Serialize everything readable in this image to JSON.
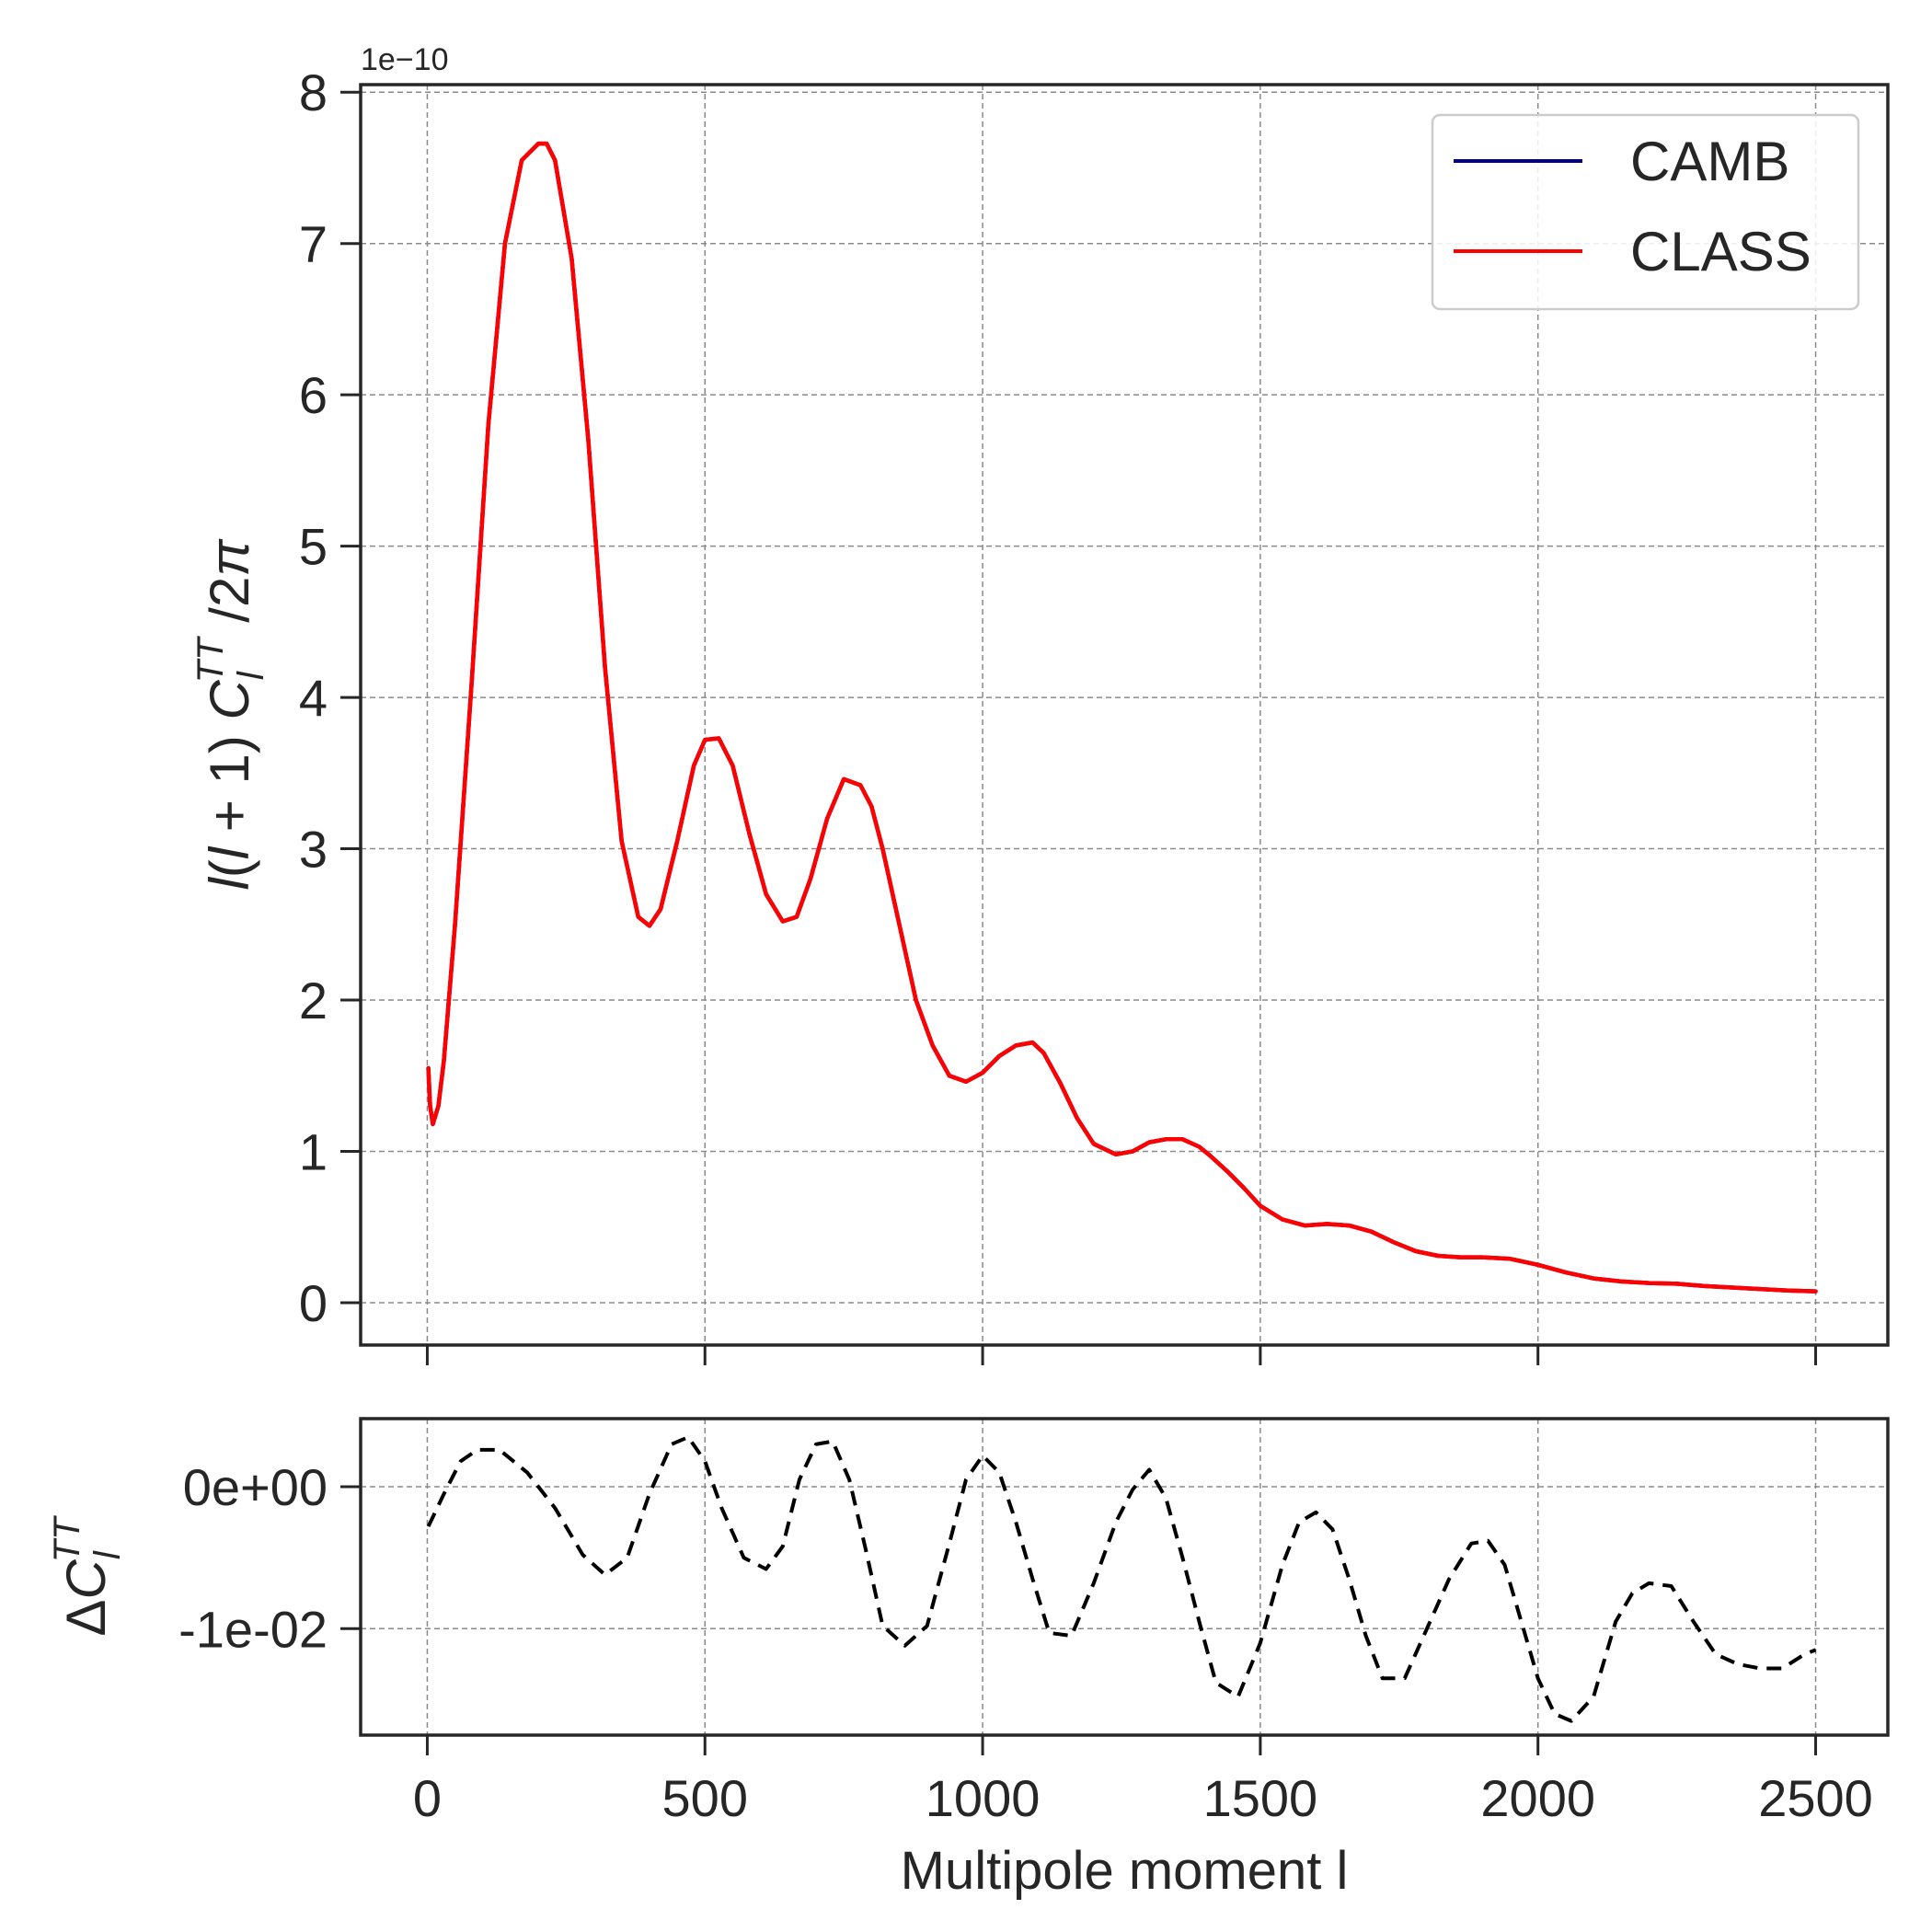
{
  "chart_data": [
    {
      "type": "line",
      "title": "",
      "ylabel": "l(l+1) C_l^TT /2π",
      "xlabel": "",
      "y_offset_text": "1e−10",
      "xlim": [
        -120,
        2630
      ],
      "ylim": [
        -0.28,
        8.05
      ],
      "xticks": [
        0,
        500,
        1000,
        1500,
        2000,
        2500
      ],
      "yticks": [
        0,
        1,
        2,
        3,
        4,
        5,
        6,
        7,
        8
      ],
      "ytick_labels": [
        "0",
        "1",
        "2",
        "3",
        "4",
        "5",
        "6",
        "7",
        "8"
      ],
      "grid": true,
      "legend_position": "top-right",
      "x": [
        2,
        5,
        10,
        20,
        30,
        50,
        80,
        110,
        140,
        170,
        200,
        215,
        230,
        260,
        290,
        320,
        350,
        380,
        400,
        420,
        450,
        480,
        500,
        525,
        550,
        580,
        610,
        640,
        665,
        690,
        720,
        750,
        780,
        800,
        820,
        850,
        880,
        910,
        940,
        970,
        1000,
        1030,
        1060,
        1090,
        1110,
        1140,
        1170,
        1200,
        1240,
        1270,
        1300,
        1330,
        1360,
        1390,
        1410,
        1440,
        1470,
        1500,
        1540,
        1580,
        1620,
        1660,
        1700,
        1740,
        1780,
        1820,
        1860,
        1900,
        1950,
        2000,
        2050,
        2100,
        2150,
        2200,
        2250,
        2300,
        2350,
        2400,
        2450,
        2500
      ],
      "series": [
        {
          "name": "CAMB",
          "color": "#00008b",
          "style": "solid",
          "values": [
            1.55,
            1.3,
            1.18,
            1.3,
            1.6,
            2.5,
            4.1,
            5.8,
            7.0,
            7.55,
            7.66,
            7.66,
            7.55,
            6.9,
            5.7,
            4.2,
            3.05,
            2.55,
            2.49,
            2.6,
            3.05,
            3.55,
            3.72,
            3.73,
            3.55,
            3.1,
            2.7,
            2.52,
            2.55,
            2.8,
            3.2,
            3.46,
            3.42,
            3.28,
            3.0,
            2.5,
            2.0,
            1.7,
            1.5,
            1.46,
            1.52,
            1.63,
            1.7,
            1.72,
            1.65,
            1.45,
            1.22,
            1.05,
            0.98,
            1.0,
            1.06,
            1.08,
            1.08,
            1.03,
            0.97,
            0.87,
            0.76,
            0.64,
            0.55,
            0.51,
            0.52,
            0.51,
            0.47,
            0.4,
            0.34,
            0.31,
            0.3,
            0.3,
            0.29,
            0.25,
            0.2,
            0.16,
            0.14,
            0.13,
            0.125,
            0.11,
            0.1,
            0.09,
            0.08,
            0.075
          ]
        },
        {
          "name": "CLASS",
          "color": "#ff0000",
          "style": "solid",
          "values": [
            1.55,
            1.3,
            1.18,
            1.3,
            1.6,
            2.5,
            4.1,
            5.8,
            7.0,
            7.55,
            7.66,
            7.66,
            7.55,
            6.9,
            5.7,
            4.2,
            3.05,
            2.55,
            2.49,
            2.6,
            3.05,
            3.55,
            3.72,
            3.73,
            3.55,
            3.1,
            2.7,
            2.52,
            2.55,
            2.8,
            3.2,
            3.46,
            3.42,
            3.28,
            3.0,
            2.5,
            2.0,
            1.7,
            1.5,
            1.46,
            1.52,
            1.63,
            1.7,
            1.72,
            1.65,
            1.45,
            1.22,
            1.05,
            0.98,
            1.0,
            1.06,
            1.08,
            1.08,
            1.03,
            0.97,
            0.87,
            0.76,
            0.64,
            0.55,
            0.51,
            0.52,
            0.51,
            0.47,
            0.4,
            0.34,
            0.31,
            0.3,
            0.3,
            0.29,
            0.25,
            0.2,
            0.16,
            0.14,
            0.13,
            0.125,
            0.11,
            0.1,
            0.09,
            0.08,
            0.075
          ]
        }
      ]
    },
    {
      "type": "line",
      "title": "",
      "xlabel": "Multipole moment l",
      "ylabel": "ΔC_l^TT",
      "xlim": [
        -120,
        2630
      ],
      "ylim": [
        -0.0175,
        0.0048
      ],
      "xticks": [
        0,
        500,
        1000,
        1500,
        2000,
        2500
      ],
      "xtick_labels": [
        "0",
        "500",
        "1000",
        "1500",
        "2000",
        "2500"
      ],
      "yticks": [
        0,
        -0.01
      ],
      "ytick_labels": [
        "0e+00",
        "-1e-02"
      ],
      "grid": true,
      "x": [
        2,
        30,
        60,
        90,
        130,
        180,
        230,
        280,
        320,
        360,
        400,
        440,
        470,
        500,
        530,
        570,
        610,
        640,
        670,
        700,
        730,
        760,
        790,
        820,
        860,
        900,
        940,
        970,
        1000,
        1030,
        1060,
        1090,
        1120,
        1160,
        1200,
        1240,
        1270,
        1300,
        1330,
        1360,
        1390,
        1420,
        1460,
        1500,
        1540,
        1570,
        1600,
        1630,
        1660,
        1690,
        1720,
        1760,
        1800,
        1840,
        1880,
        1910,
        1940,
        1970,
        2000,
        2030,
        2060,
        2100,
        2140,
        2170,
        2200,
        2240,
        2280,
        2320,
        2360,
        2400,
        2440,
        2480,
        2500
      ],
      "series": [
        {
          "name": "",
          "color": "#000000",
          "style": "dashed",
          "values": [
            -0.0028,
            -0.0005,
            0.0018,
            0.0026,
            0.0026,
            0.001,
            -0.0015,
            -0.0048,
            -0.0062,
            -0.005,
            -0.0005,
            0.003,
            0.0035,
            0.0018,
            -0.0015,
            -0.005,
            -0.0058,
            -0.0042,
            0.0005,
            0.003,
            0.0032,
            0.0005,
            -0.0045,
            -0.0098,
            -0.0112,
            -0.0098,
            -0.004,
            0.0005,
            0.0022,
            0.001,
            -0.0025,
            -0.0065,
            -0.0103,
            -0.0105,
            -0.0068,
            -0.0025,
            -0.0002,
            0.0012,
            -0.0008,
            -0.005,
            -0.0095,
            -0.0138,
            -0.0148,
            -0.011,
            -0.0055,
            -0.0025,
            -0.0018,
            -0.003,
            -0.0065,
            -0.0105,
            -0.0135,
            -0.0135,
            -0.01,
            -0.0065,
            -0.004,
            -0.0038,
            -0.0055,
            -0.0095,
            -0.0135,
            -0.016,
            -0.0165,
            -0.0148,
            -0.0095,
            -0.0075,
            -0.0068,
            -0.007,
            -0.0095,
            -0.0118,
            -0.0125,
            -0.0128,
            -0.0128,
            -0.0118,
            -0.0115
          ]
        }
      ]
    }
  ]
}
